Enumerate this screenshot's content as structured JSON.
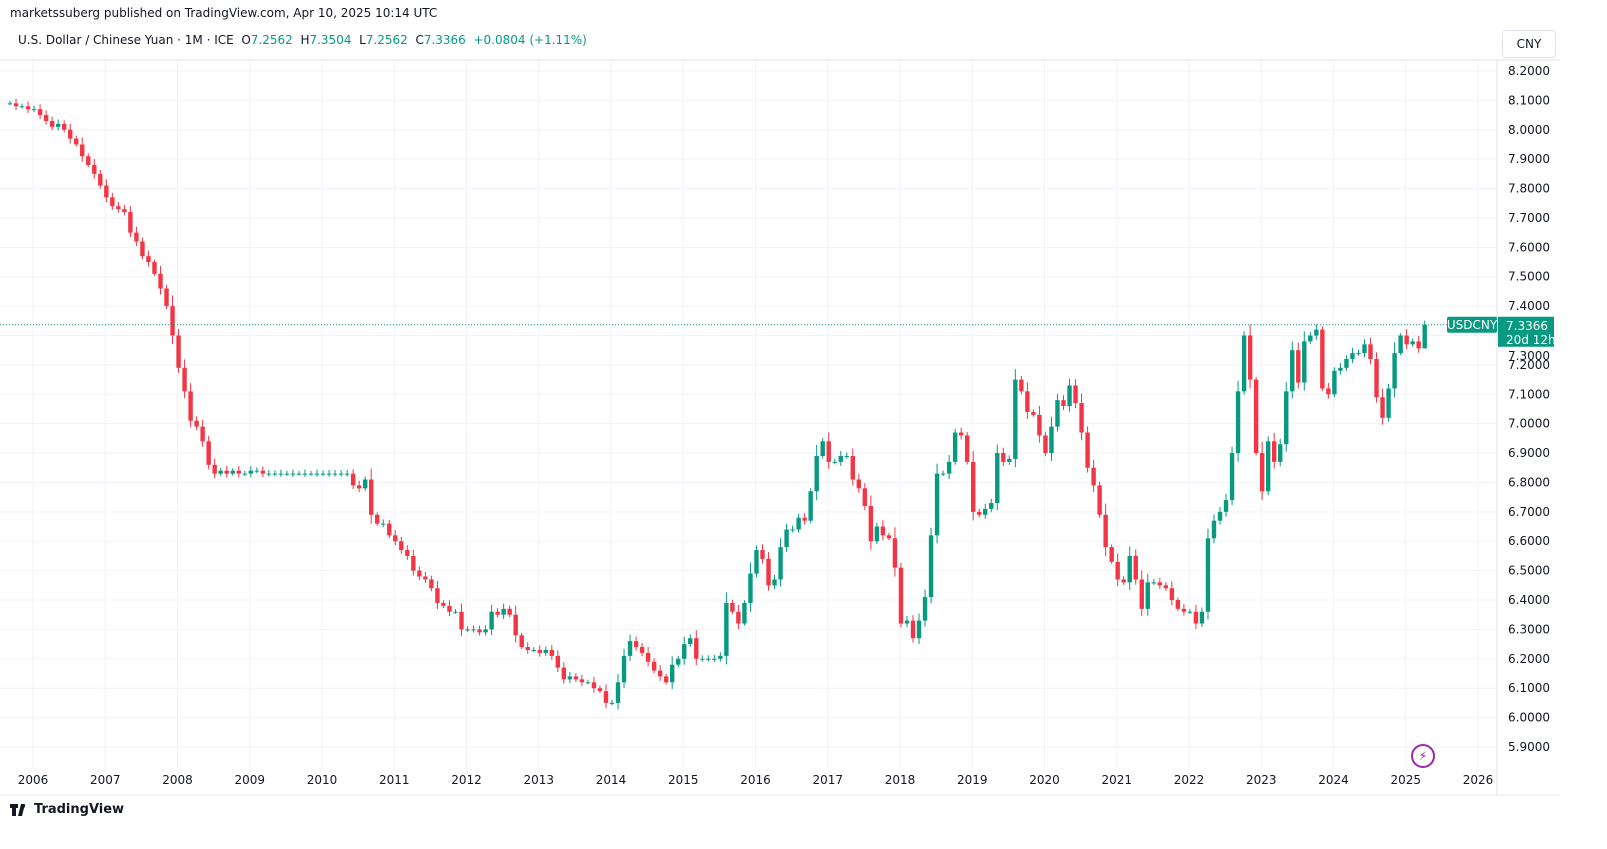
{
  "publisher": "marketssuberg published on TradingView.com, Apr 10, 2025 10:14 UTC",
  "legend": {
    "title": "U.S. Dollar / Chinese Yuan · 1M · ICE",
    "o_label": "O",
    "o": "7.2562",
    "h_label": "H",
    "h": "7.3504",
    "l_label": "L",
    "l": "7.2562",
    "c_label": "C",
    "c": "7.3366",
    "change": "+0.0804 (+1.11%)"
  },
  "currency": "CNY",
  "last_price": {
    "symbol": "USDCNY",
    "price": "7.3366",
    "countdown": "20d 12h"
  },
  "logo": "TradingView",
  "icons": {
    "alert": "lightning-icon",
    "logo": "tradingview-logo-icon"
  },
  "colors": {
    "up": "#089981",
    "down": "#f23645",
    "grid": "#f0f3fa",
    "text": "#131722"
  },
  "chart_data": {
    "type": "candlestick",
    "symbol": "USDCNY",
    "interval": "1M",
    "start": "2005-09",
    "ylim": [
      5.85,
      8.25
    ],
    "yticks": [
      "8.2000",
      "8.1000",
      "8.0000",
      "7.9000",
      "7.8000",
      "7.7000",
      "7.6000",
      "7.5000",
      "7.4000",
      "7.3000",
      "7.2000",
      "7.1000",
      "7.0000",
      "6.9000",
      "6.8000",
      "6.7000",
      "6.6000",
      "6.5000",
      "6.4000",
      "6.3000",
      "6.2000",
      "6.1000",
      "6.0000",
      "5.9000"
    ],
    "xticks": [
      "2006",
      "2007",
      "2008",
      "2009",
      "2010",
      "2011",
      "2012",
      "2013",
      "2014",
      "2015",
      "2016",
      "2017",
      "2018",
      "2019",
      "2020",
      "2021",
      "2022",
      "2023",
      "2024",
      "2025",
      "2026"
    ],
    "grid": true,
    "first_open": 8.09,
    "last_candle": {
      "open": 7.2562,
      "high": 7.3504,
      "low": 7.2562,
      "close": 7.3366
    },
    "closes": [
      8.09,
      8.08,
      8.08,
      8.07,
      8.07,
      8.05,
      8.03,
      8.01,
      8.02,
      8.0,
      7.97,
      7.95,
      7.91,
      7.88,
      7.85,
      7.81,
      7.77,
      7.74,
      7.73,
      7.72,
      7.65,
      7.62,
      7.57,
      7.55,
      7.51,
      7.46,
      7.4,
      7.3,
      7.19,
      7.11,
      7.01,
      6.99,
      6.94,
      6.86,
      6.83,
      6.84,
      6.83,
      6.84,
      6.83,
      6.83,
      6.84,
      6.84,
      6.83,
      6.83,
      6.83,
      6.83,
      6.83,
      6.83,
      6.83,
      6.83,
      6.83,
      6.83,
      6.83,
      6.83,
      6.83,
      6.83,
      6.83,
      6.79,
      6.78,
      6.81,
      6.69,
      6.66,
      6.66,
      6.62,
      6.6,
      6.57,
      6.55,
      6.5,
      6.48,
      6.47,
      6.44,
      6.39,
      6.38,
      6.36,
      6.36,
      6.3,
      6.3,
      6.3,
      6.29,
      6.3,
      6.36,
      6.35,
      6.37,
      6.35,
      6.28,
      6.24,
      6.23,
      6.23,
      6.22,
      6.23,
      6.21,
      6.17,
      6.13,
      6.14,
      6.13,
      6.12,
      6.12,
      6.1,
      6.09,
      6.05,
      6.05,
      6.12,
      6.21,
      6.26,
      6.24,
      6.22,
      6.19,
      6.16,
      6.14,
      6.12,
      6.18,
      6.2,
      6.25,
      6.27,
      6.2,
      6.2,
      6.2,
      6.2,
      6.21,
      6.39,
      6.36,
      6.32,
      6.39,
      6.49,
      6.57,
      6.54,
      6.45,
      6.47,
      6.58,
      6.64,
      6.64,
      6.68,
      6.67,
      6.77,
      6.89,
      6.94,
      6.87,
      6.87,
      6.89,
      6.89,
      6.81,
      6.78,
      6.72,
      6.6,
      6.65,
      6.62,
      6.61,
      6.51,
      6.32,
      6.33,
      6.27,
      6.33,
      6.41,
      6.62,
      6.83,
      6.83,
      6.87,
      6.97,
      6.96,
      6.87,
      6.7,
      6.69,
      6.71,
      6.73,
      6.9,
      6.87,
      6.88,
      7.15,
      7.11,
      7.04,
      7.03,
      6.96,
      6.9,
      6.99,
      7.08,
      7.06,
      7.13,
      7.07,
      6.97,
      6.85,
      6.79,
      6.69,
      6.58,
      6.53,
      6.47,
      6.46,
      6.55,
      6.47,
      6.37,
      6.46,
      6.46,
      6.45,
      6.44,
      6.4,
      6.37,
      6.36,
      6.36,
      6.32,
      6.36,
      6.61,
      6.67,
      6.7,
      6.74,
      6.9,
      7.11,
      7.3,
      7.15,
      6.9,
      6.77,
      6.94,
      6.87,
      6.93,
      7.11,
      7.25,
      7.14,
      7.28,
      7.3,
      7.32,
      7.12,
      7.1,
      7.18,
      7.19,
      7.22,
      7.24,
      7.24,
      7.27,
      7.22,
      7.09,
      7.02,
      7.12,
      7.24,
      7.3,
      7.27,
      7.28,
      7.2562,
      7.3366
    ]
  }
}
